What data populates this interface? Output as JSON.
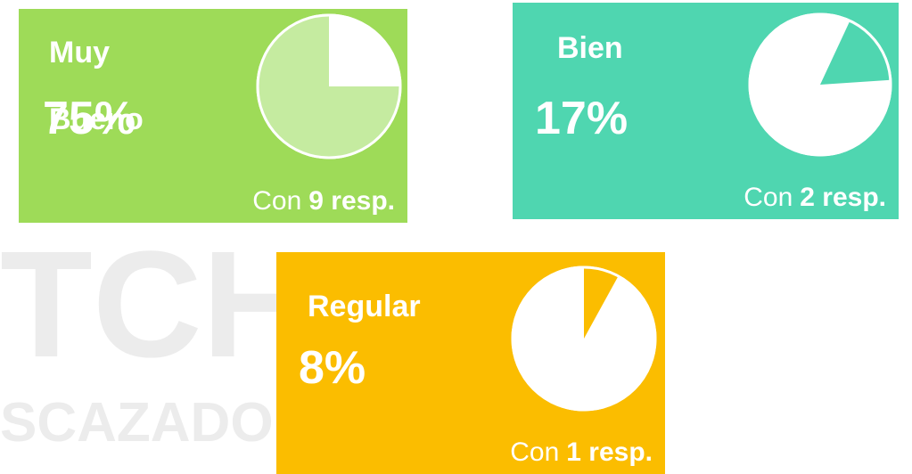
{
  "watermark": [
    "TCH",
    "SCAZADORES"
  ],
  "cards": [
    {
      "label": "Muy Bueno",
      "percent": 75,
      "percent_label": "75%",
      "prefix": "Con",
      "count_label": "9 resp.",
      "color": "#9edb58",
      "slice_color": "#c5eba0"
    },
    {
      "label": "Bien",
      "percent": 17,
      "percent_label": "17%",
      "prefix": "Con",
      "count_label": "2 resp.",
      "color": "#4fd6b0",
      "slice_color": "#4fd6b0"
    },
    {
      "label": "Regular",
      "percent": 8,
      "percent_label": "8%",
      "prefix": "Con",
      "count_label": "1 resp.",
      "color": "#fbbd00",
      "slice_color": "#fbbd00"
    }
  ]
}
